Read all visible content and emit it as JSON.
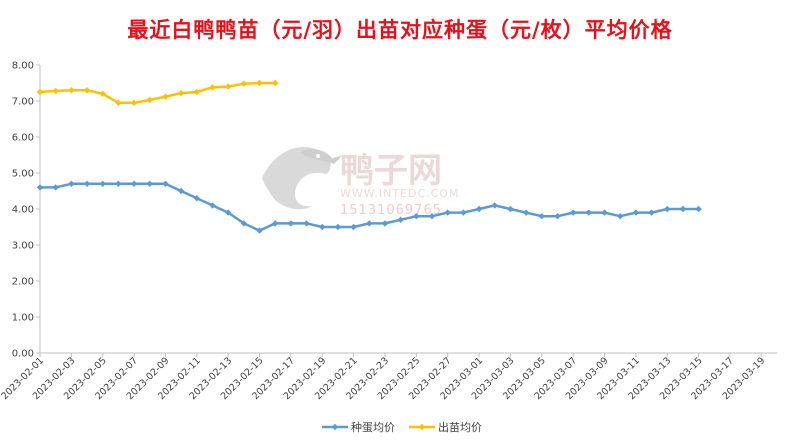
{
  "chart_data": {
    "type": "line",
    "title": "最近白鸭鸭苗（元/羽）出苗对应种蛋（元/枚）平均价格",
    "ylim": [
      0,
      8
    ],
    "yticks": [
      "0.00",
      "1.00",
      "2.00",
      "3.00",
      "4.00",
      "5.00",
      "6.00",
      "7.00",
      "8.00"
    ],
    "x_tick_labels": [
      "2023-02-01",
      "2023-02-03",
      "2023-02-05",
      "2023-02-07",
      "2023-02-09",
      "2023-02-11",
      "2023-02-13",
      "2023-02-15",
      "2023-02-17",
      "2023-02-19",
      "2023-02-21",
      "2023-02-23",
      "2023-02-25",
      "2023-02-27",
      "2023-03-01",
      "2023-03-03",
      "2023-03-05",
      "2023-03-07",
      "2023-03-09",
      "2023-03-11",
      "2023-03-13",
      "2023-03-15",
      "2023-03-17",
      "2023-03-19"
    ],
    "x_start": "2023-02-01",
    "x_end": "2023-03-20",
    "legend_position": "bottom",
    "grid": false,
    "series": [
      {
        "name": "种蛋均价",
        "color": "#5b9bd5",
        "points": [
          [
            "2023-02-01",
            4.6
          ],
          [
            "2023-02-02",
            4.6
          ],
          [
            "2023-02-03",
            4.7
          ],
          [
            "2023-02-04",
            4.7
          ],
          [
            "2023-02-05",
            4.7
          ],
          [
            "2023-02-06",
            4.7
          ],
          [
            "2023-02-07",
            4.7
          ],
          [
            "2023-02-08",
            4.7
          ],
          [
            "2023-02-09",
            4.7
          ],
          [
            "2023-02-10",
            4.5
          ],
          [
            "2023-02-11",
            4.3
          ],
          [
            "2023-02-12",
            4.1
          ],
          [
            "2023-02-13",
            3.9
          ],
          [
            "2023-02-14",
            3.6
          ],
          [
            "2023-02-15",
            3.4
          ],
          [
            "2023-02-16",
            3.6
          ],
          [
            "2023-02-17",
            3.6
          ],
          [
            "2023-02-18",
            3.6
          ],
          [
            "2023-02-19",
            3.5
          ],
          [
            "2023-02-20",
            3.5
          ],
          [
            "2023-02-21",
            3.5
          ],
          [
            "2023-02-22",
            3.6
          ],
          [
            "2023-02-23",
            3.6
          ],
          [
            "2023-02-24",
            3.7
          ],
          [
            "2023-02-25",
            3.8
          ],
          [
            "2023-02-26",
            3.8
          ],
          [
            "2023-02-27",
            3.9
          ],
          [
            "2023-02-28",
            3.9
          ],
          [
            "2023-03-01",
            4.0
          ],
          [
            "2023-03-02",
            4.1
          ],
          [
            "2023-03-03",
            4.0
          ],
          [
            "2023-03-04",
            3.9
          ],
          [
            "2023-03-05",
            3.8
          ],
          [
            "2023-03-06",
            3.8
          ],
          [
            "2023-03-07",
            3.9
          ],
          [
            "2023-03-08",
            3.9
          ],
          [
            "2023-03-09",
            3.9
          ],
          [
            "2023-03-10",
            3.8
          ],
          [
            "2023-03-11",
            3.9
          ],
          [
            "2023-03-12",
            3.9
          ],
          [
            "2023-03-13",
            4.0
          ],
          [
            "2023-03-14",
            4.0
          ],
          [
            "2023-03-15",
            4.0
          ]
        ]
      },
      {
        "name": "出苗均价",
        "color": "#ffc000",
        "points": [
          [
            "2023-02-01",
            7.25
          ],
          [
            "2023-02-02",
            7.28
          ],
          [
            "2023-02-03",
            7.3
          ],
          [
            "2023-02-04",
            7.3
          ],
          [
            "2023-02-05",
            7.2
          ],
          [
            "2023-02-06",
            6.95
          ],
          [
            "2023-02-07",
            6.95
          ],
          [
            "2023-02-08",
            7.03
          ],
          [
            "2023-02-09",
            7.12
          ],
          [
            "2023-02-10",
            7.22
          ],
          [
            "2023-02-11",
            7.25
          ],
          [
            "2023-02-12",
            7.38
          ],
          [
            "2023-02-13",
            7.4
          ],
          [
            "2023-02-14",
            7.48
          ],
          [
            "2023-02-15",
            7.5
          ],
          [
            "2023-02-16",
            7.5
          ]
        ]
      }
    ]
  },
  "watermark": {
    "brand": "鸭子网",
    "url": "WWW.INTEDC.COM",
    "phone": "15131069765"
  }
}
